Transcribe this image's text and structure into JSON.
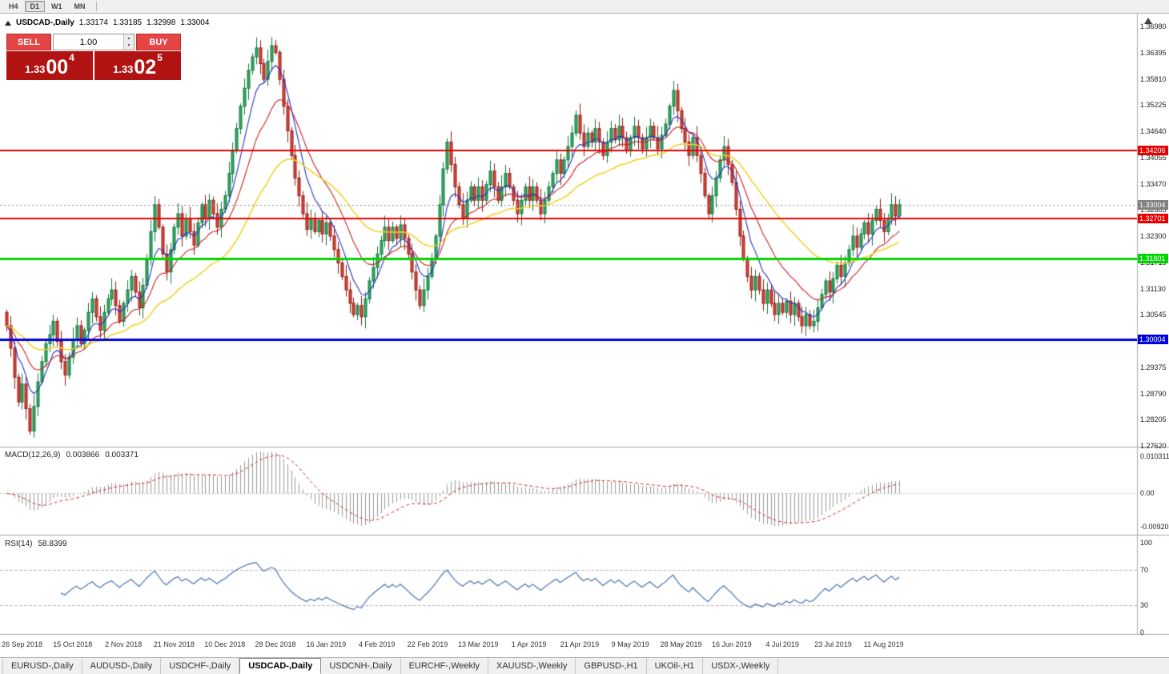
{
  "toolbar": {
    "timeframes": [
      {
        "label": "H4",
        "active": false
      },
      {
        "label": "D1",
        "active": true
      },
      {
        "label": "W1",
        "active": false
      },
      {
        "label": "MN",
        "active": false
      }
    ]
  },
  "header": {
    "symbol": "USDCAD-,Daily",
    "open": "1.33174",
    "high": "1.33185",
    "low": "1.32998",
    "close": "1.33004"
  },
  "trade_panel": {
    "sell_label": "SELL",
    "buy_label": "BUY",
    "volume": "1.00",
    "sell_price": {
      "prefix": "1.33",
      "big": "00",
      "sup": "4"
    },
    "buy_price": {
      "prefix": "1.33",
      "big": "02",
      "sup": "5"
    }
  },
  "macd_panel": {
    "name": "MACD(12,26,9)",
    "value": "0.003866",
    "signal": "0.003371",
    "axis_labels": [
      {
        "label": "0.010311",
        "value": 0.010311
      },
      {
        "label": "0.00",
        "value": 0
      },
      {
        "label": "-0.009203",
        "value": -0.009203
      }
    ]
  },
  "rsi_panel": {
    "name": "RSI(14)",
    "value": "58.8399",
    "axis_labels": [
      {
        "label": "100",
        "value": 100
      },
      {
        "label": "70",
        "value": 70
      },
      {
        "label": "30",
        "value": 30
      },
      {
        "label": "0",
        "value": 0
      }
    ]
  },
  "tabs": [
    {
      "label": "EURUSD-,Daily",
      "active": false
    },
    {
      "label": "AUDUSD-,Daily",
      "active": false
    },
    {
      "label": "USDCHF-,Daily",
      "active": false
    },
    {
      "label": "USDCAD-,Daily",
      "active": true
    },
    {
      "label": "USDCNH-,Daily",
      "active": false
    },
    {
      "label": "EURCHF-,Weekly",
      "active": false
    },
    {
      "label": "XAUUSD-,Weekly",
      "active": false
    },
    {
      "label": "GBPUSD-,H1",
      "active": false
    },
    {
      "label": "UKOil-,H1",
      "active": false
    },
    {
      "label": "USDX-,Weekly",
      "active": false
    }
  ],
  "chart_data": {
    "type": "candlestick",
    "symbol": "USDCAD-",
    "timeframe": "Daily",
    "price_range": [
      1.2762,
      1.3698
    ],
    "y_tick_labels": [
      "1.36980",
      "1.36395",
      "1.35810",
      "1.35225",
      "1.34640",
      "1.34055",
      "1.33470",
      "1.32885",
      "1.32300",
      "1.31715",
      "1.31130",
      "1.30545",
      "1.29960",
      "1.29375",
      "1.28790",
      "1.28205",
      "1.27620"
    ],
    "x_tick_labels": [
      "26 Sep 2018",
      "15 Oct 2018",
      "2 Nov 2018",
      "21 Nov 2018",
      "10 Dec 2018",
      "28 Dec 2018",
      "16 Jan 2019",
      "4 Feb 2019",
      "22 Feb 2019",
      "13 Mar 2019",
      "1 Apr 2019",
      "21 Apr 2019",
      "9 May 2019",
      "28 May 2019",
      "16 Jun 2019",
      "4 Jul 2019",
      "23 Jul 2019",
      "11 Aug 2019"
    ],
    "first_label_bar": 4,
    "bars_per_label": 13,
    "current_price": 1.33004,
    "current_price_label": "1.33004",
    "ohlc_latest": {
      "open": 1.33174,
      "high": 1.33185,
      "low": 1.32998,
      "close": 1.33004
    },
    "hlines": [
      {
        "label": "1.34206",
        "value": 1.34206,
        "color": "#e80000",
        "width": 2
      },
      {
        "label": "1.32701",
        "value": 1.32701,
        "color": "#e80000",
        "width": 2
      },
      {
        "label": "1.31801",
        "value": 1.31801,
        "color": "#00d400",
        "width": 3
      },
      {
        "label": "1.30004",
        "value": 1.30004,
        "color": "#0000dc",
        "width": 3
      }
    ],
    "scale": 10000,
    "closes_x1e4": [
      13030,
      12980,
      12915,
      12860,
      12900,
      12845,
      12795,
      12850,
      12905,
      12950,
      12990,
      13010,
      13040,
      12995,
      12950,
      12920,
      12960,
      13000,
      13030,
      12990,
      13020,
      13060,
      13090,
      13050,
      13020,
      13060,
      13090,
      13110,
      13075,
      13040,
      13080,
      13110,
      13140,
      13105,
      13070,
      13120,
      13180,
      13240,
      13300,
      13250,
      13190,
      13150,
      13200,
      13250,
      13280,
      13230,
      13270,
      13240,
      13210,
      13260,
      13300,
      13270,
      13310,
      13280,
      13250,
      13290,
      13320,
      13370,
      13420,
      13470,
      13520,
      13560,
      13600,
      13630,
      13650,
      13615,
      13580,
      13620,
      13655,
      13640,
      13580,
      13520,
      13465,
      13410,
      13360,
      13320,
      13280,
      13245,
      13270,
      13240,
      13265,
      13235,
      13260,
      13230,
      13200,
      13170,
      13140,
      13110,
      13080,
      13055,
      13075,
      13050,
      13090,
      13130,
      13160,
      13190,
      13220,
      13250,
      13220,
      13250,
      13225,
      13255,
      13225,
      13190,
      13150,
      13110,
      13075,
      13110,
      13140,
      13180,
      13230,
      13300,
      13380,
      13440,
      13390,
      13340,
      13300,
      13270,
      13310,
      13340,
      13310,
      13340,
      13310,
      13345,
      13375,
      13340,
      13310,
      13340,
      13370,
      13340,
      13310,
      13280,
      13310,
      13340,
      13310,
      13340,
      13310,
      13280,
      13310,
      13340,
      13370,
      13400,
      13370,
      13400,
      13430,
      13460,
      13500,
      13460,
      13430,
      13460,
      13440,
      13470,
      13440,
      13410,
      13440,
      13470,
      13445,
      13475,
      13450,
      13420,
      13450,
      13475,
      13450,
      13425,
      13450,
      13475,
      13450,
      13425,
      13455,
      13480,
      13520,
      13555,
      13510,
      13470,
      13440,
      13410,
      13450,
      13410,
      13370,
      13320,
      13280,
      13320,
      13360,
      13400,
      13430,
      13390,
      13350,
      13290,
      13230,
      13180,
      13140,
      13110,
      13140,
      13110,
      13080,
      13110,
      13080,
      13055,
      13080,
      13060,
      13085,
      13055,
      13080,
      13050,
      13030,
      13055,
      13030,
      13040,
      13070,
      13100,
      13130,
      13105,
      13135,
      13165,
      13140,
      13170,
      13200,
      13230,
      13205,
      13235,
      13260,
      13235,
      13265,
      13290,
      13265,
      13240,
      13270,
      13300,
      13275,
      13300
    ],
    "indicators": {
      "moving_averages": [
        {
          "color_key": "ma_fast",
          "period": 7
        },
        {
          "color_key": "ma_mid",
          "period": 16
        },
        {
          "color_key": "ma_slow",
          "period": 38
        }
      ],
      "macd": {
        "fast": 12,
        "slow": 26,
        "signal": 9,
        "value": 0.003866,
        "signal_value": 0.003371,
        "axis_max": 0.010311,
        "axis_min": -0.009203
      },
      "rsi": {
        "period": 14,
        "value": 58.8399,
        "levels": [
          30,
          70
        ]
      }
    }
  },
  "colors": {
    "up": "#2fae62",
    "up_border": "#14763f",
    "down": "#de453b",
    "down_border": "#8f1c14",
    "ma_fast": "#2331c8",
    "ma_mid": "#cc2222",
    "ma_slow": "#efd21e",
    "macd_hist": "#9a9a9a",
    "macd_signal": "#d23030",
    "rsi_line": "#4672b4",
    "button_red": "#e64545",
    "price_box_red": "#b11212",
    "current_label_bg": "#808080"
  }
}
